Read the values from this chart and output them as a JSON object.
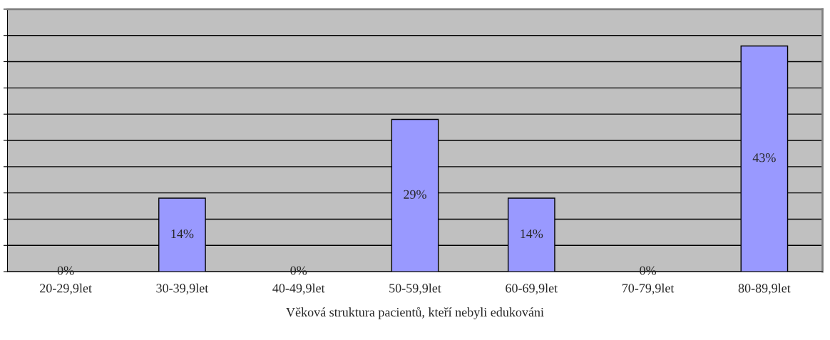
{
  "chart_data": {
    "type": "bar",
    "categories": [
      "20-29,9let",
      "30-39,9let",
      "40-49,9let",
      "50-59,9let",
      "60-69,9let",
      "70-79,9let",
      "80-89,9let"
    ],
    "values": [
      0,
      14,
      0,
      29,
      14,
      0,
      43
    ],
    "value_labels": [
      "0%",
      "14%",
      "0%",
      "29%",
      "14%",
      "0%",
      "43%"
    ],
    "color": "#9999ff",
    "xlabel": "Věková struktura pacientů, kteří nebyli edukováni",
    "ylim": [
      0,
      50
    ],
    "yticks": [
      {
        "value": 0,
        "label": null
      },
      {
        "value": 5,
        "label": null
      },
      {
        "value": 10,
        "label": null
      },
      {
        "value": 15,
        "label": null
      },
      {
        "value": 20,
        "label": null
      },
      {
        "value": 25,
        "label": null
      },
      {
        "value": 30,
        "label": null
      },
      {
        "value": 35,
        "label": null
      },
      {
        "value": 40,
        "label": null
      },
      {
        "value": 45,
        "label": null
      },
      {
        "value": 50,
        "label": null
      }
    ],
    "grid": "y",
    "legend": false
  }
}
